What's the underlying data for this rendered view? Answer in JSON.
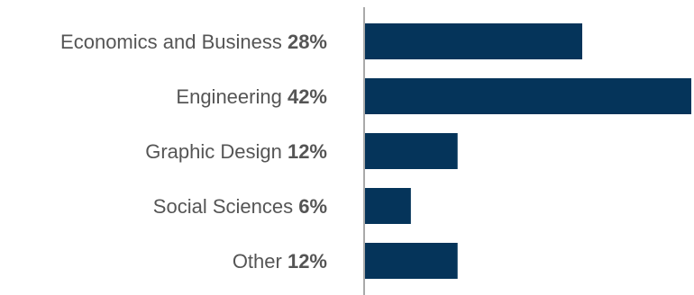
{
  "chart_data": {
    "type": "bar",
    "orientation": "horizontal",
    "categories": [
      "Economics and Business",
      "Engineering",
      "Graphic Design",
      "Social Sciences",
      "Other"
    ],
    "values": [
      28,
      42,
      12,
      6,
      12
    ],
    "value_labels": [
      "28%",
      "42%",
      "12%",
      "6%",
      "12%"
    ],
    "unit": "%",
    "xlim": [
      0,
      42
    ],
    "grid": false,
    "legend": "none",
    "bar_color": "#05345a",
    "axis_color": "#555555",
    "label_color": "#555555"
  }
}
